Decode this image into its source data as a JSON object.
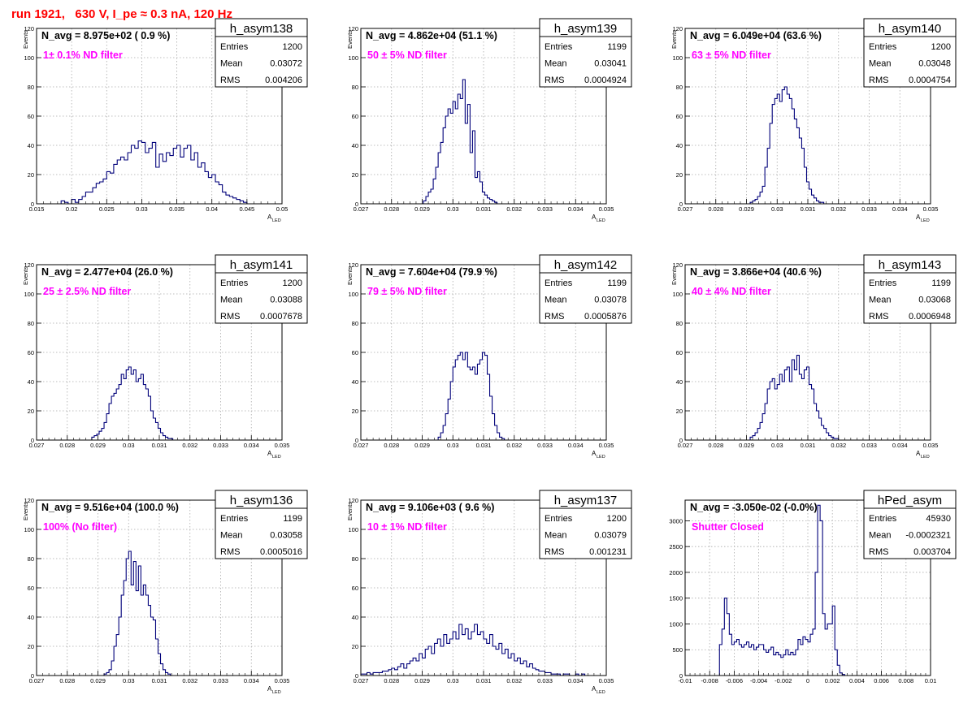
{
  "page_title": "run 1921,   630 V, I_pe ≈ 0.3 nA, 120 Hz",
  "colors": {
    "histogram_line": "#00007a",
    "annotation": "#ff00ff",
    "title_text": "#ff0000",
    "grid": "#aaaaaa"
  },
  "chart_data": [
    {
      "type": "histogram",
      "name": "h_asym138",
      "stats": [
        {
          "label": "Entries",
          "value": "1200"
        },
        {
          "label": "Mean",
          "value": "0.03072"
        },
        {
          "label": "RMS",
          "value": "0.004206"
        }
      ],
      "navg_text": "N_avg = 8.975e+02 ( 0.9 %)",
      "annotation": "1± 0.1% ND filter",
      "ylabel": "Events",
      "xlabel": "A",
      "xlabel_sub": "LED",
      "xlim": [
        0.015,
        0.05
      ],
      "ylim": [
        0,
        120
      ],
      "xticks": [
        0.015,
        0.02,
        0.025,
        0.03,
        0.035,
        0.04,
        0.045,
        0.05
      ],
      "xtick_labels": [
        "0.015",
        "0.02",
        "0.025",
        "0.03",
        "0.035",
        "0.04",
        "0.045",
        "0.05"
      ],
      "yticks": [
        0,
        20,
        40,
        60,
        80,
        100,
        120
      ],
      "ytick_labels": [
        "0",
        "20",
        "40",
        "60",
        "80",
        "100",
        "120"
      ],
      "bin_edges_start": 0.0185,
      "bin_width": 0.0005,
      "values": [
        2,
        1,
        0,
        3,
        1,
        3,
        5,
        8,
        8,
        11,
        14,
        15,
        17,
        22,
        21,
        27,
        30,
        32,
        30,
        35,
        40,
        38,
        43,
        42,
        35,
        38,
        42,
        25,
        34,
        29,
        35,
        33,
        38,
        40,
        32,
        38,
        40,
        30,
        35,
        25,
        28,
        22,
        18,
        20,
        15,
        13,
        8,
        6,
        5,
        4,
        3,
        2,
        1
      ]
    },
    {
      "type": "histogram",
      "name": "h_asym139",
      "stats": [
        {
          "label": "Entries",
          "value": "1199"
        },
        {
          "label": "Mean",
          "value": "0.03041"
        },
        {
          "label": "RMS",
          "value": "0.0004924"
        }
      ],
      "navg_text": "N_avg = 4.862e+04 (51.1 %)",
      "annotation": "50 ± 5% ND filter",
      "ylabel": "Events",
      "xlabel": "A",
      "xlabel_sub": "LED",
      "xlim": [
        0.027,
        0.035
      ],
      "ylim": [
        0,
        120
      ],
      "xticks": [
        0.027,
        0.028,
        0.029,
        0.03,
        0.031,
        0.032,
        0.033,
        0.034,
        0.035
      ],
      "xtick_labels": [
        "0.027",
        "0.028",
        "0.029",
        "0.03",
        "0.031",
        "0.032",
        "0.033",
        "0.034",
        "0.035"
      ],
      "yticks": [
        0,
        20,
        40,
        60,
        80,
        100,
        120
      ],
      "ytick_labels": [
        "0",
        "20",
        "40",
        "60",
        "80",
        "100",
        "120"
      ],
      "bin_edges_start": 0.02904,
      "bin_width": 8e-05,
      "values": [
        2,
        5,
        8,
        10,
        17,
        25,
        35,
        42,
        52,
        60,
        65,
        62,
        70,
        65,
        75,
        72,
        85,
        55,
        68,
        35,
        50,
        18,
        22,
        15,
        8,
        6,
        4,
        3,
        2,
        1
      ]
    },
    {
      "type": "histogram",
      "name": "h_asym140",
      "stats": [
        {
          "label": "Entries",
          "value": "1200"
        },
        {
          "label": "Mean",
          "value": "0.03048"
        },
        {
          "label": "RMS",
          "value": "0.0004754"
        }
      ],
      "navg_text": "N_avg = 6.049e+04 (63.6 %)",
      "annotation": "63 ± 5% ND filter",
      "ylabel": "Events",
      "xlabel": "A",
      "xlabel_sub": "LED",
      "xlim": [
        0.027,
        0.035
      ],
      "ylim": [
        0,
        120
      ],
      "xticks": [
        0.027,
        0.028,
        0.029,
        0.03,
        0.031,
        0.032,
        0.033,
        0.034,
        0.035
      ],
      "xtick_labels": [
        "0.027",
        "0.028",
        "0.029",
        "0.03",
        "0.031",
        "0.032",
        "0.033",
        "0.034",
        "0.035"
      ],
      "yticks": [
        0,
        20,
        40,
        60,
        80,
        100,
        120
      ],
      "ytick_labels": [
        "0",
        "20",
        "40",
        "60",
        "80",
        "100",
        "120"
      ],
      "bin_edges_start": 0.02912,
      "bin_width": 8e-05,
      "values": [
        1,
        2,
        3,
        5,
        8,
        12,
        25,
        38,
        55,
        68,
        72,
        75,
        70,
        78,
        80,
        75,
        72,
        65,
        58,
        52,
        45,
        38,
        25,
        15,
        10,
        6,
        4,
        2,
        1,
        1
      ]
    },
    {
      "type": "histogram",
      "name": "h_asym141",
      "stats": [
        {
          "label": "Entries",
          "value": "1200"
        },
        {
          "label": "Mean",
          "value": "0.03088"
        },
        {
          "label": "RMS",
          "value": "0.0007678"
        }
      ],
      "navg_text": "N_avg = 2.477e+04 (26.0 %)",
      "annotation": "25 ± 2.5% ND filter",
      "ylabel": "Events",
      "xlabel": "A",
      "xlabel_sub": "LED",
      "xlim": [
        0.027,
        0.035
      ],
      "ylim": [
        0,
        120
      ],
      "xticks": [
        0.027,
        0.028,
        0.029,
        0.03,
        0.031,
        0.032,
        0.033,
        0.034,
        0.035
      ],
      "xtick_labels": [
        "0.027",
        "0.028",
        "0.029",
        "0.03",
        "0.031",
        "0.032",
        "0.033",
        "0.034",
        "0.035"
      ],
      "yticks": [
        0,
        20,
        40,
        60,
        80,
        100,
        120
      ],
      "ytick_labels": [
        "0",
        "20",
        "40",
        "60",
        "80",
        "100",
        "120"
      ],
      "bin_edges_start": 0.0288,
      "bin_width": 8e-05,
      "values": [
        2,
        3,
        4,
        6,
        8,
        12,
        18,
        25,
        30,
        32,
        35,
        38,
        45,
        42,
        48,
        50,
        45,
        48,
        40,
        42,
        45,
        38,
        35,
        30,
        20,
        15,
        12,
        8,
        5,
        3,
        2,
        1,
        1
      ]
    },
    {
      "type": "histogram",
      "name": "h_asym142",
      "stats": [
        {
          "label": "Entries",
          "value": "1199"
        },
        {
          "label": "Mean",
          "value": "0.03078"
        },
        {
          "label": "RMS",
          "value": "0.0005876"
        }
      ],
      "navg_text": "N_avg = 7.604e+04 (79.9 %)",
      "annotation": "79 ± 5% ND filter",
      "ylabel": "Events",
      "xlabel": "A",
      "xlabel_sub": "LED",
      "xlim": [
        0.027,
        0.035
      ],
      "ylim": [
        0,
        120
      ],
      "xticks": [
        0.027,
        0.028,
        0.029,
        0.03,
        0.031,
        0.032,
        0.033,
        0.034,
        0.035
      ],
      "xtick_labels": [
        "0.027",
        "0.028",
        "0.029",
        "0.03",
        "0.031",
        "0.032",
        "0.033",
        "0.034",
        "0.035"
      ],
      "yticks": [
        0,
        20,
        40,
        60,
        80,
        100,
        120
      ],
      "ytick_labels": [
        "0",
        "20",
        "40",
        "60",
        "80",
        "100",
        "120"
      ],
      "bin_edges_start": 0.02952,
      "bin_width": 8e-05,
      "values": [
        2,
        5,
        10,
        18,
        28,
        40,
        50,
        55,
        58,
        60,
        55,
        60,
        50,
        48,
        50,
        45,
        52,
        55,
        60,
        58,
        45,
        30,
        18,
        10,
        5,
        2,
        1
      ]
    },
    {
      "type": "histogram",
      "name": "h_asym143",
      "stats": [
        {
          "label": "Entries",
          "value": "1199"
        },
        {
          "label": "Mean",
          "value": "0.03068"
        },
        {
          "label": "RMS",
          "value": "0.0006948"
        }
      ],
      "navg_text": "N_avg = 3.866e+04 (40.6 %)",
      "annotation": "40 ± 4% ND filter",
      "ylabel": "Events",
      "xlabel": "A",
      "xlabel_sub": "LED",
      "xlim": [
        0.027,
        0.035
      ],
      "ylim": [
        0,
        120
      ],
      "xticks": [
        0.027,
        0.028,
        0.029,
        0.03,
        0.031,
        0.032,
        0.033,
        0.034,
        0.035
      ],
      "xtick_labels": [
        "0.027",
        "0.028",
        "0.029",
        "0.03",
        "0.031",
        "0.032",
        "0.033",
        "0.034",
        "0.035"
      ],
      "yticks": [
        0,
        20,
        40,
        60,
        80,
        100,
        120
      ],
      "ytick_labels": [
        "0",
        "20",
        "40",
        "60",
        "80",
        "100",
        "120"
      ],
      "bin_edges_start": 0.02912,
      "bin_width": 8e-05,
      "values": [
        2,
        3,
        5,
        8,
        12,
        18,
        25,
        35,
        40,
        42,
        35,
        38,
        45,
        40,
        48,
        50,
        40,
        55,
        48,
        58,
        45,
        42,
        48,
        50,
        38,
        35,
        25,
        20,
        15,
        10,
        8,
        5,
        3,
        2,
        1,
        1
      ]
    },
    {
      "type": "histogram",
      "name": "h_asym136",
      "stats": [
        {
          "label": "Entries",
          "value": "1199"
        },
        {
          "label": "Mean",
          "value": "0.03058"
        },
        {
          "label": "RMS",
          "value": "0.0005016"
        }
      ],
      "navg_text": "N_avg = 9.516e+04 (100.0 %)",
      "annotation": "100% (No filter)",
      "ylabel": "Events",
      "xlabel": "A",
      "xlabel_sub": "LED",
      "xlim": [
        0.027,
        0.035
      ],
      "ylim": [
        0,
        120
      ],
      "xticks": [
        0.027,
        0.028,
        0.029,
        0.03,
        0.031,
        0.032,
        0.033,
        0.034,
        0.035
      ],
      "xtick_labels": [
        "0.027",
        "0.028",
        "0.029",
        "0.03",
        "0.031",
        "0.032",
        "0.033",
        "0.034",
        "0.035"
      ],
      "yticks": [
        0,
        20,
        40,
        60,
        80,
        100,
        120
      ],
      "ytick_labels": [
        "0",
        "20",
        "40",
        "60",
        "80",
        "100",
        "120"
      ],
      "bin_edges_start": 0.0292,
      "bin_width": 8e-05,
      "values": [
        1,
        2,
        4,
        10,
        20,
        28,
        40,
        55,
        65,
        80,
        85,
        62,
        78,
        58,
        75,
        55,
        62,
        55,
        48,
        40,
        38,
        25,
        15,
        8,
        4,
        2,
        1
      ]
    },
    {
      "type": "histogram",
      "name": "h_asym137",
      "stats": [
        {
          "label": "Entries",
          "value": "1200"
        },
        {
          "label": "Mean",
          "value": "0.03079"
        },
        {
          "label": "RMS",
          "value": "0.001231"
        }
      ],
      "navg_text": "N_avg = 9.106e+03 ( 9.6 %)",
      "annotation": "10 ± 1% ND filter",
      "ylabel": "Events",
      "xlabel": "A",
      "xlabel_sub": "LED",
      "xlim": [
        0.027,
        0.035
      ],
      "ylim": [
        0,
        120
      ],
      "xticks": [
        0.027,
        0.028,
        0.029,
        0.03,
        0.031,
        0.032,
        0.033,
        0.034,
        0.035
      ],
      "xtick_labels": [
        "0.027",
        "0.028",
        "0.029",
        "0.03",
        "0.031",
        "0.032",
        "0.033",
        "0.034",
        "0.035"
      ],
      "yticks": [
        0,
        20,
        40,
        60,
        80,
        100,
        120
      ],
      "ytick_labels": [
        "0",
        "20",
        "40",
        "60",
        "80",
        "100",
        "120"
      ],
      "bin_edges_start": 0.027,
      "bin_width": 0.0001,
      "values": [
        1,
        1,
        2,
        1,
        2,
        2,
        2,
        3,
        3,
        4,
        5,
        4,
        6,
        8,
        5,
        8,
        10,
        12,
        10,
        15,
        12,
        18,
        20,
        15,
        22,
        25,
        20,
        28,
        22,
        25,
        30,
        25,
        35,
        28,
        32,
        25,
        30,
        35,
        28,
        30,
        25,
        22,
        28,
        20,
        18,
        22,
        15,
        18,
        12,
        15,
        10,
        12,
        8,
        10,
        6,
        8,
        5,
        4,
        3,
        3,
        2,
        2,
        1,
        1,
        1,
        0,
        1,
        1,
        0,
        0,
        1,
        0,
        1,
        0,
        0,
        0,
        0,
        0,
        0,
        0
      ]
    },
    {
      "type": "histogram",
      "name": "hPed_asym",
      "stats": [
        {
          "label": "Entries",
          "value": "45930"
        },
        {
          "label": "Mean",
          "value": "-0.0002321"
        },
        {
          "label": "RMS",
          "value": "0.003704"
        }
      ],
      "navg_text": "N_avg = -3.050e-02 (-0.0%)",
      "annotation": "Shutter Closed",
      "ylabel": "",
      "xlabel": "",
      "xlabel_sub": "",
      "xlim": [
        -0.01,
        0.01
      ],
      "ylim": [
        0,
        3400
      ],
      "xticks": [
        -0.01,
        -0.008,
        -0.006,
        -0.004,
        -0.002,
        0,
        0.002,
        0.004,
        0.006,
        0.008,
        0.01
      ],
      "xtick_labels": [
        "-0.01",
        "-0.008",
        "-0.006",
        "-0.004",
        "-0.002",
        "0",
        "0.002",
        "0.004",
        "0.006",
        "0.008",
        "0.01"
      ],
      "yticks": [
        0,
        500,
        1000,
        1500,
        2000,
        2500,
        3000
      ],
      "ytick_labels": [
        "0",
        "500",
        "1000",
        "1500",
        "2000",
        "2500",
        "3000"
      ],
      "bin_edges_start": -0.0072,
      "bin_width": 0.0002,
      "values": [
        600,
        900,
        1500,
        1200,
        800,
        600,
        650,
        700,
        600,
        550,
        600,
        650,
        550,
        600,
        500,
        550,
        600,
        600,
        500,
        450,
        500,
        550,
        400,
        450,
        400,
        350,
        400,
        500,
        400,
        450,
        400,
        500,
        700,
        600,
        750,
        700,
        650,
        800,
        900,
        2000,
        3300,
        3000,
        1200,
        900,
        1000,
        1000,
        1350,
        500,
        200,
        50,
        20
      ]
    }
  ]
}
